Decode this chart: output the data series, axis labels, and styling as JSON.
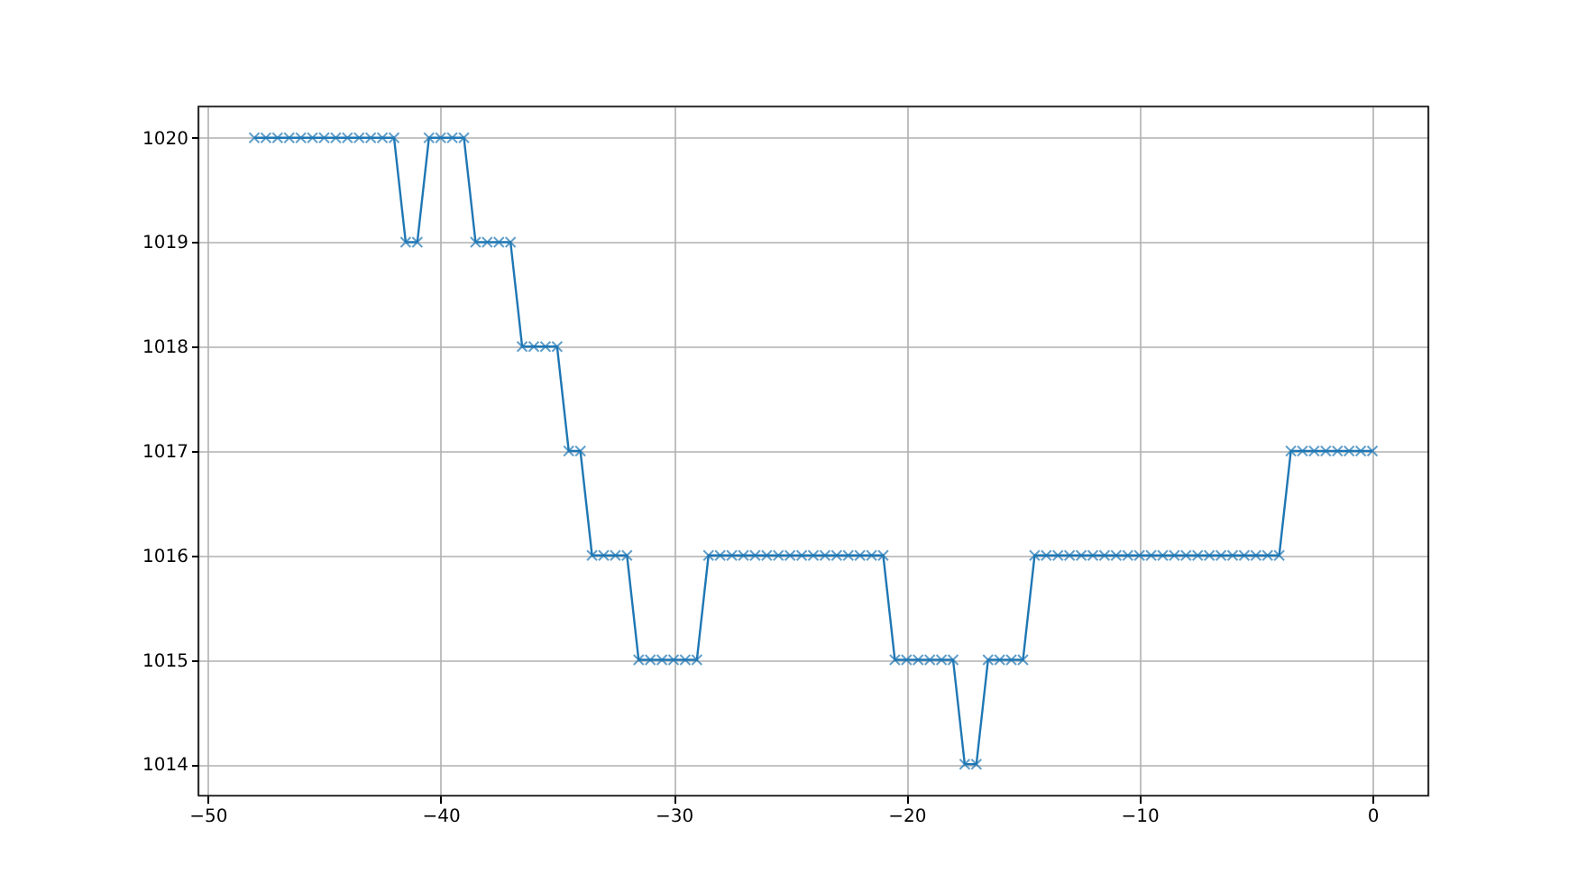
{
  "chart_data": {
    "type": "line",
    "x": [
      -48,
      -47.5,
      -47,
      -46.5,
      -46,
      -45.5,
      -45,
      -44.5,
      -44,
      -43.5,
      -43,
      -42.5,
      -42,
      -41.5,
      -41,
      -40.5,
      -40,
      -39.5,
      -39,
      -38.5,
      -38,
      -37.5,
      -37,
      -36.5,
      -36,
      -35.5,
      -35,
      -34.5,
      -34,
      -33.5,
      -33,
      -32.5,
      -32,
      -31.5,
      -31,
      -30.5,
      -30,
      -29.5,
      -29,
      -28.5,
      -28,
      -27.5,
      -27,
      -26.5,
      -26,
      -25.5,
      -25,
      -24.5,
      -24,
      -23.5,
      -23,
      -22.5,
      -22,
      -21.5,
      -21,
      -20.5,
      -20,
      -19.5,
      -19,
      -18.5,
      -18,
      -17.5,
      -17,
      -16.5,
      -16,
      -15.5,
      -15,
      -14.5,
      -14,
      -13.5,
      -13,
      -12.5,
      -12,
      -11.5,
      -11,
      -10.5,
      -10,
      -9.5,
      -9,
      -8.5,
      -8,
      -7.5,
      -7,
      -6.5,
      -6,
      -5.5,
      -5,
      -4.5,
      -4,
      -3.5,
      -3,
      -2.5,
      -2,
      -1.5,
      -1,
      -0.5,
      0
    ],
    "series": [
      {
        "color": "#1f77b4",
        "values": [
          1020,
          1020,
          1020,
          1020,
          1020,
          1020,
          1020,
          1020,
          1020,
          1020,
          1020,
          1020,
          1020,
          1019,
          1019,
          1020,
          1020,
          1020,
          1020,
          1019,
          1019,
          1019,
          1019,
          1018,
          1018,
          1018,
          1018,
          1017,
          1017,
          1016,
          1016,
          1016,
          1016,
          1015,
          1015,
          1015,
          1015,
          1015,
          1015,
          1016,
          1016,
          1016,
          1016,
          1016,
          1016,
          1016,
          1016,
          1016,
          1016,
          1016,
          1016,
          1016,
          1016,
          1016,
          1016,
          1015,
          1015,
          1015,
          1015,
          1015,
          1015,
          1014,
          1014,
          1015,
          1015,
          1015,
          1015,
          1016,
          1016,
          1016,
          1016,
          1016,
          1016,
          1016,
          1016,
          1016,
          1016,
          1016,
          1016,
          1016,
          1016,
          1016,
          1016,
          1016,
          1016,
          1016,
          1016,
          1016,
          1016,
          1017,
          1017,
          1017,
          1017,
          1017,
          1017,
          1017,
          1017
        ]
      }
    ],
    "xlim": [
      -50.4,
      2.4
    ],
    "xticks": [
      -50,
      -40,
      -30,
      -20,
      -10,
      0
    ],
    "ylim": [
      1013.7,
      1020.3
    ],
    "yticks": [
      1014,
      1015,
      1016,
      1017,
      1018,
      1019,
      1020
    ],
    "grid": true,
    "marker": "cross",
    "line_style": "solid"
  }
}
